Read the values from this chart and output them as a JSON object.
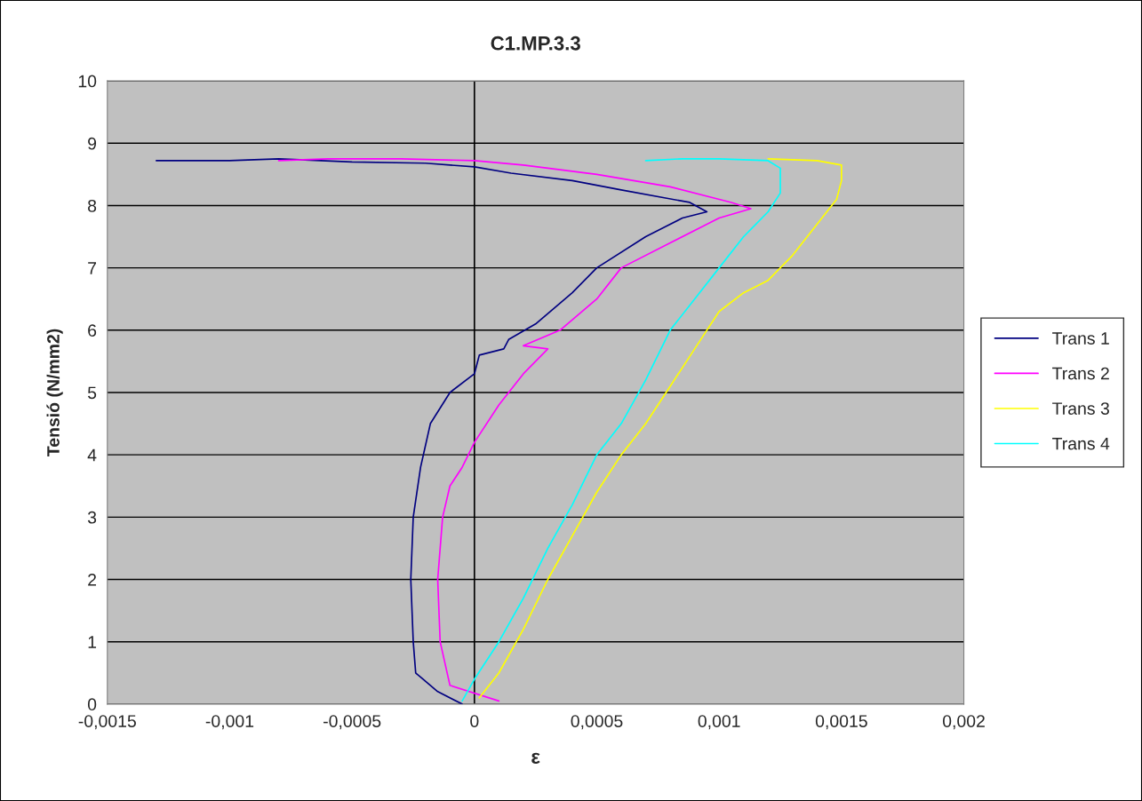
{
  "chart_data": {
    "type": "line",
    "title": "C1.MP.3.3",
    "xlabel": "ε",
    "ylabel": "Tensió (N/mm2)",
    "xlim": [
      -0.0015,
      0.002
    ],
    "ylim": [
      0,
      10
    ],
    "xticks": [
      {
        "value": -0.0015,
        "label": "-0,0015"
      },
      {
        "value": -0.001,
        "label": "-0,001"
      },
      {
        "value": -0.0005,
        "label": "-0,0005"
      },
      {
        "value": 0,
        "label": "0"
      },
      {
        "value": 0.0005,
        "label": "0,0005"
      },
      {
        "value": 0.001,
        "label": "0,001"
      },
      {
        "value": 0.0015,
        "label": "0,0015"
      },
      {
        "value": 0.002,
        "label": "0,002"
      }
    ],
    "yticks": [
      0,
      1,
      2,
      3,
      4,
      5,
      6,
      7,
      8,
      9,
      10
    ],
    "grid": "y",
    "legend": "right",
    "ref_lines": [
      {
        "axis": "x",
        "value": 0,
        "color": "#000000"
      }
    ],
    "series": [
      {
        "name": "Trans 1",
        "color": "#000080",
        "x": [
          -5e-05,
          -0.00015,
          -0.00024,
          -0.00025,
          -0.00026,
          -0.00025,
          -0.00022,
          -0.00018,
          -0.0001,
          0,
          2e-05,
          0.00012,
          0.00014,
          0.00025,
          0.0004,
          0.0005,
          0.0007,
          0.00085,
          0.00095,
          0.00088,
          0.0006,
          0.0004,
          0.00015,
          0,
          -0.0002,
          -0.0005,
          -0.0008,
          -0.001,
          -0.0013
        ],
        "values": [
          0,
          0.2,
          0.5,
          1,
          2,
          3,
          3.8,
          4.5,
          5,
          5.3,
          5.6,
          5.7,
          5.85,
          6.1,
          6.6,
          7,
          7.5,
          7.8,
          7.9,
          8.05,
          8.25,
          8.4,
          8.52,
          8.62,
          8.68,
          8.7,
          8.75,
          8.72,
          8.72
        ]
      },
      {
        "name": "Trans 2",
        "color": "#ff00ff",
        "x": [
          0.0001,
          -0.0001,
          -0.00014,
          -0.00015,
          -0.00013,
          -0.0001,
          -5e-05,
          0,
          0.0001,
          0.0002,
          0.0003,
          0.0002,
          0.00035,
          0.0005,
          0.0006,
          0.0008,
          0.001,
          0.00113,
          0.00105,
          0.0008,
          0.0005,
          0.0002,
          0,
          -0.0003,
          -0.0006,
          -0.0008
        ],
        "values": [
          0.05,
          0.3,
          1,
          2,
          3,
          3.5,
          3.8,
          4.2,
          4.8,
          5.3,
          5.7,
          5.75,
          6,
          6.5,
          7,
          7.4,
          7.8,
          7.95,
          8.05,
          8.3,
          8.5,
          8.65,
          8.72,
          8.75,
          8.75,
          8.72
        ]
      },
      {
        "name": "Trans 3",
        "color": "#ffff00",
        "x": [
          2e-05,
          0.0001,
          0.0002,
          0.0003,
          0.0004,
          0.0005,
          0.0006,
          0.0007,
          0.0008,
          0.0009,
          0.001,
          0.0011,
          0.0012,
          0.0013,
          0.0014,
          0.00148,
          0.0015,
          0.0015,
          0.0014,
          0.0012
        ],
        "values": [
          0.1,
          0.5,
          1.2,
          2,
          2.7,
          3.4,
          4,
          4.5,
          5.1,
          5.7,
          6.3,
          6.6,
          6.8,
          7.2,
          7.7,
          8.1,
          8.4,
          8.65,
          8.72,
          8.75
        ]
      },
      {
        "name": "Trans 4",
        "color": "#00ffff",
        "x": [
          -5e-05,
          0,
          0.0001,
          0.0002,
          0.0003,
          0.0004,
          0.0005,
          0.0006,
          0.0007,
          0.0008,
          0.0009,
          0.001,
          0.0011,
          0.0012,
          0.00125,
          0.00125,
          0.0012,
          0.001,
          0.00085,
          0.0007
        ],
        "values": [
          0.05,
          0.4,
          1,
          1.7,
          2.5,
          3.2,
          4,
          4.5,
          5.2,
          6,
          6.5,
          7,
          7.5,
          7.9,
          8.2,
          8.6,
          8.72,
          8.75,
          8.75,
          8.72
        ]
      }
    ]
  }
}
